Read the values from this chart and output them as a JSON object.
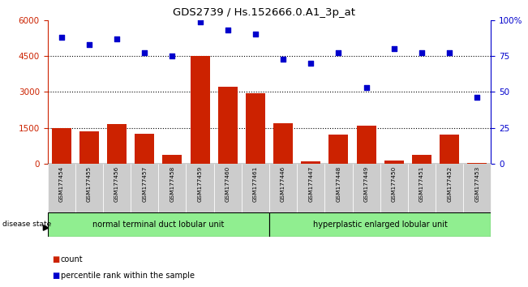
{
  "title": "GDS2739 / Hs.152666.0.A1_3p_at",
  "samples": [
    "GSM177454",
    "GSM177455",
    "GSM177456",
    "GSM177457",
    "GSM177458",
    "GSM177459",
    "GSM177460",
    "GSM177461",
    "GSM177446",
    "GSM177447",
    "GSM177448",
    "GSM177449",
    "GSM177450",
    "GSM177451",
    "GSM177452",
    "GSM177453"
  ],
  "counts": [
    1500,
    1360,
    1650,
    1230,
    380,
    4500,
    3200,
    2950,
    1680,
    100,
    1220,
    1580,
    120,
    350,
    1200,
    40
  ],
  "percentiles": [
    88,
    83,
    87,
    77,
    75,
    99,
    93,
    90,
    73,
    70,
    77,
    53,
    80,
    77,
    77,
    46
  ],
  "group1_label": "normal terminal duct lobular unit",
  "group2_label": "hyperplastic enlarged lobular unit",
  "group1_count": 8,
  "group2_count": 8,
  "ylim_left": [
    0,
    6000
  ],
  "ylim_right": [
    0,
    100
  ],
  "yticks_left": [
    0,
    1500,
    3000,
    4500,
    6000
  ],
  "yticks_right": [
    0,
    25,
    50,
    75,
    100
  ],
  "bar_color": "#cc2200",
  "dot_color": "#0000cc",
  "grid_lines": [
    1500,
    3000,
    4500
  ],
  "tick_bg": "#cccccc",
  "group_color": "#90ee90",
  "legend_count_label": "count",
  "legend_pct_label": "percentile rank within the sample",
  "disease_state_label": "disease state"
}
